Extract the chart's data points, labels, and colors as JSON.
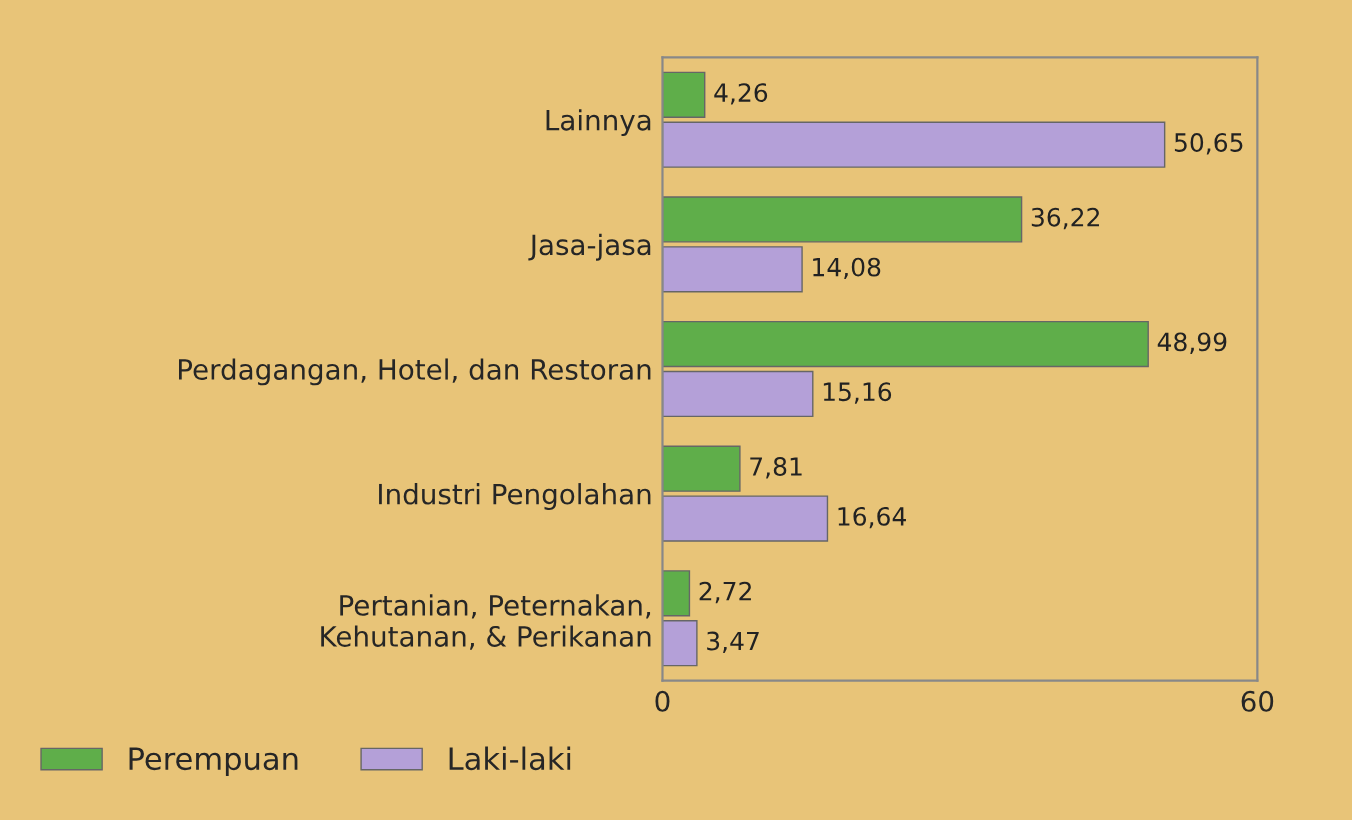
{
  "chart_data": {
    "type": "bar",
    "orientation": "horizontal",
    "categories": [
      "Lainnya",
      "Jasa-jasa",
      "Perdagangan, Hotel, dan Restoran",
      "Industri Pengolahan",
      "Pertanian, Peternakan,\nKehutanan, & Perikanan"
    ],
    "series": [
      {
        "name": "Perempuan",
        "color": "#5fae4a",
        "values": [
          4.26,
          36.22,
          48.99,
          7.81,
          2.72
        ],
        "value_labels": [
          "4,26",
          "36,22",
          "48,99",
          "7,81",
          "2,72"
        ]
      },
      {
        "name": "Laki-laki",
        "color": "#b4a0d8",
        "values": [
          50.65,
          14.08,
          15.16,
          16.64,
          3.47
        ],
        "value_labels": [
          "50,65",
          "14,08",
          "15,16",
          "16,64",
          "3,47"
        ]
      }
    ],
    "xlim": [
      0,
      60
    ],
    "xticks": [
      0,
      60
    ],
    "legend": "bottom",
    "grid": false
  }
}
